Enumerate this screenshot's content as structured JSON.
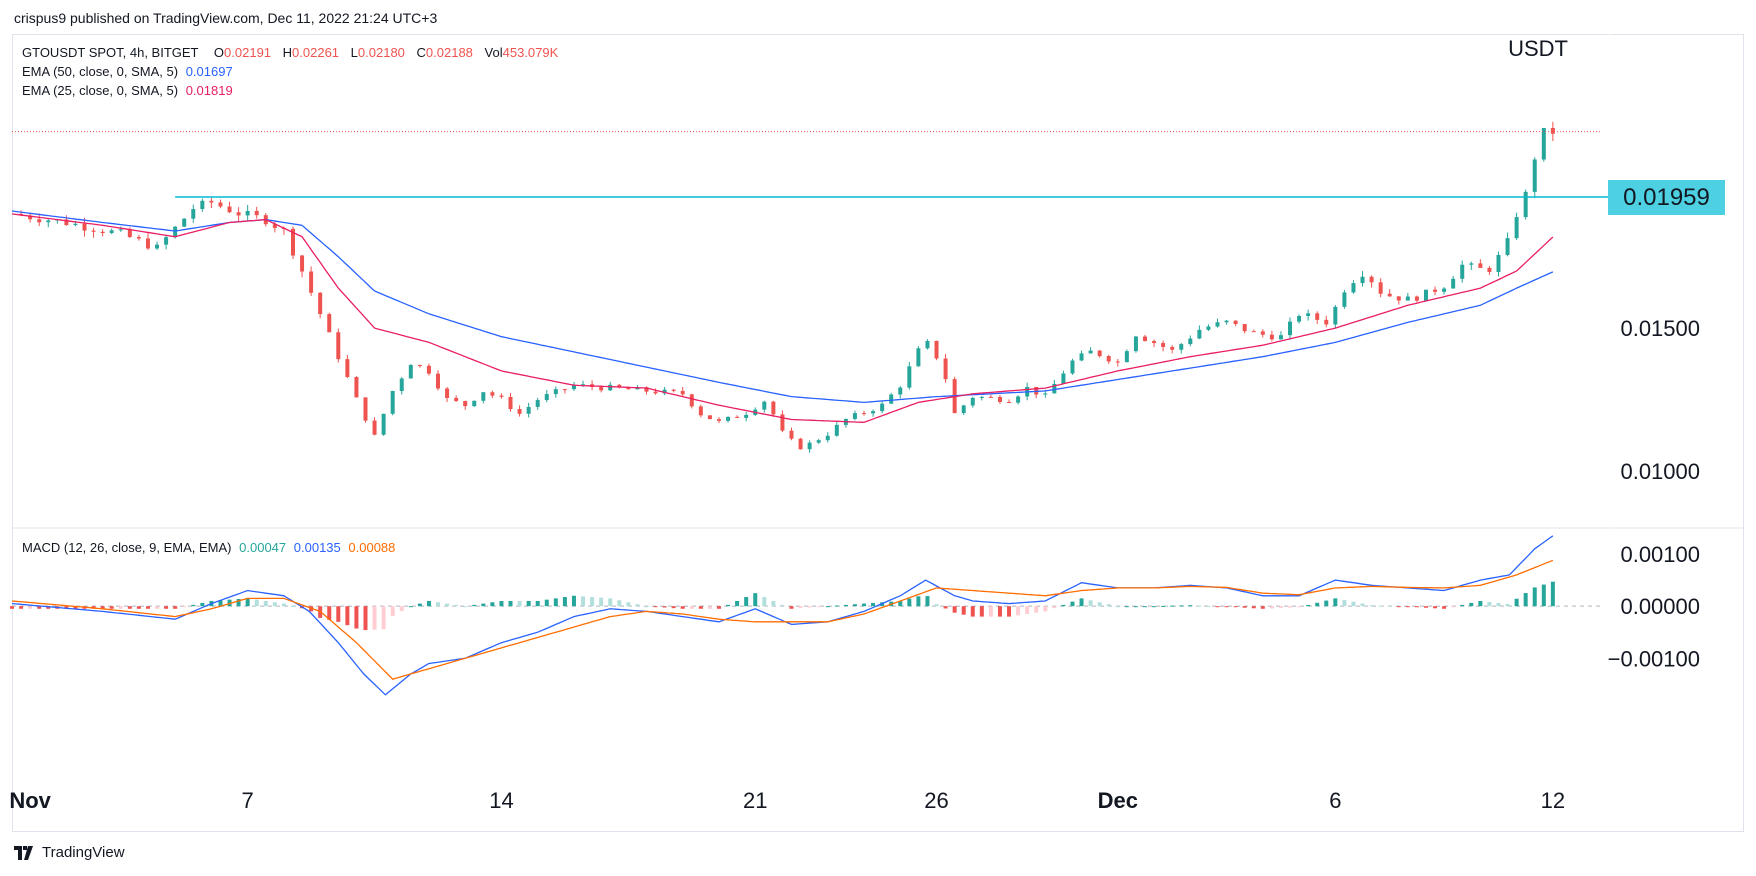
{
  "publisher": "crispus9 published on TradingView.com, Dec 11, 2022 21:24 UTC+3",
  "footer": {
    "brand": "TradingView"
  },
  "legend": {
    "symbol": "GTOUSDT SPOT, 4h, BITGET",
    "o_label": "O",
    "o_value": "0.02191",
    "h_label": "H",
    "h_value": "0.02261",
    "l_label": "L",
    "l_value": "0.02180",
    "c_label": "C",
    "c_value": "0.02188",
    "vol_label": "Vol",
    "vol_value": "453.079K",
    "ema50_label": "EMA (50, close, 0, SMA, 5)",
    "ema50_value": "0.01697",
    "ema25_label": "EMA (25, close, 0, SMA, 5)",
    "ema25_value": "0.01819",
    "macd_label": "MACD (12, 26, close, 9, EMA, EMA)",
    "macd_hist": "0.00047",
    "macd_line": "0.00135",
    "macd_signal": "0.00088"
  },
  "colors": {
    "up": "#26a69a",
    "down": "#ef5350",
    "ema50": "#2962ff",
    "ema25": "#e91e63",
    "macd_line": "#2962ff",
    "signal_line": "#ff6d00",
    "hline": "#00bcd4",
    "hist_up_strong": "#26a69a",
    "hist_up_weak": "#b2dfdb",
    "hist_down_strong": "#ef5350",
    "hist_down_weak": "#ffcdd2"
  },
  "chart_data": [
    {
      "type": "candlestick",
      "title": "GTOUSDT SPOT, 4h, BITGET",
      "currency_label": "USDT",
      "price_ticks": [
        "0.01000",
        "0.01500"
      ],
      "hline_value": 0.01959,
      "hline_label": "0.01959",
      "last_price": 0.02188,
      "ylim": [
        0.008,
        0.0253
      ],
      "x_ticks": [
        {
          "label": "Nov",
          "day": 1,
          "bold": true
        },
        {
          "label": "7",
          "day": 7
        },
        {
          "label": "14",
          "day": 14
        },
        {
          "label": "21",
          "day": 21
        },
        {
          "label": "26",
          "day": 26
        },
        {
          "label": "Dec",
          "day": 31,
          "bold": true
        },
        {
          "label": "6",
          "day": 37
        },
        {
          "label": "12",
          "day": 43
        }
      ],
      "xlim_days": [
        0.5,
        44.3
      ],
      "close_path": [
        {
          "day": 0.5,
          "close": 0.019
        },
        {
          "day": 2,
          "close": 0.0187
        },
        {
          "day": 3.5,
          "close": 0.0183
        },
        {
          "day": 4.5,
          "close": 0.0178
        },
        {
          "day": 5,
          "close": 0.0185
        },
        {
          "day": 5.5,
          "close": 0.0192
        },
        {
          "day": 6,
          "close": 0.0194
        },
        {
          "day": 6.8,
          "close": 0.019
        },
        {
          "day": 7.5,
          "close": 0.0188
        },
        {
          "day": 8,
          "close": 0.0184
        },
        {
          "day": 8.5,
          "close": 0.017
        },
        {
          "day": 9,
          "close": 0.0155
        },
        {
          "day": 9.5,
          "close": 0.014
        },
        {
          "day": 10,
          "close": 0.0125
        },
        {
          "day": 10.5,
          "close": 0.0112
        },
        {
          "day": 11,
          "close": 0.0128
        },
        {
          "day": 11.5,
          "close": 0.0138
        },
        {
          "day": 12,
          "close": 0.0135
        },
        {
          "day": 12.5,
          "close": 0.0125
        },
        {
          "day": 13,
          "close": 0.0123
        },
        {
          "day": 13.5,
          "close": 0.0128
        },
        {
          "day": 14,
          "close": 0.0125
        },
        {
          "day": 14.5,
          "close": 0.012
        },
        {
          "day": 15,
          "close": 0.0125
        },
        {
          "day": 16,
          "close": 0.013
        },
        {
          "day": 17,
          "close": 0.0129
        },
        {
          "day": 18,
          "close": 0.0128
        },
        {
          "day": 19,
          "close": 0.0127
        },
        {
          "day": 19.5,
          "close": 0.012
        },
        {
          "day": 20,
          "close": 0.0117
        },
        {
          "day": 20.7,
          "close": 0.012
        },
        {
          "day": 21.3,
          "close": 0.0125
        },
        {
          "day": 21.8,
          "close": 0.0112
        },
        {
          "day": 22.3,
          "close": 0.0108
        },
        {
          "day": 23,
          "close": 0.0113
        },
        {
          "day": 23.5,
          "close": 0.0118
        },
        {
          "day": 24.5,
          "close": 0.0123
        },
        {
          "day": 25,
          "close": 0.013
        },
        {
          "day": 25.5,
          "close": 0.0142
        },
        {
          "day": 25.8,
          "close": 0.0145
        },
        {
          "day": 26.2,
          "close": 0.0135
        },
        {
          "day": 26.5,
          "close": 0.012
        },
        {
          "day": 27,
          "close": 0.0126
        },
        {
          "day": 28,
          "close": 0.0125
        },
        {
          "day": 28.5,
          "close": 0.0129
        },
        {
          "day": 29,
          "close": 0.0126
        },
        {
          "day": 29.7,
          "close": 0.0138
        },
        {
          "day": 30.3,
          "close": 0.0142
        },
        {
          "day": 31,
          "close": 0.0138
        },
        {
          "day": 31.5,
          "close": 0.0148
        },
        {
          "day": 32.5,
          "close": 0.0142
        },
        {
          "day": 33.3,
          "close": 0.015
        },
        {
          "day": 34,
          "close": 0.0152
        },
        {
          "day": 34.8,
          "close": 0.0148
        },
        {
          "day": 35.5,
          "close": 0.0147
        },
        {
          "day": 36,
          "close": 0.0155
        },
        {
          "day": 36.8,
          "close": 0.0152
        },
        {
          "day": 37.3,
          "close": 0.0165
        },
        {
          "day": 37.8,
          "close": 0.017
        },
        {
          "day": 38.3,
          "close": 0.0162
        },
        {
          "day": 39,
          "close": 0.016
        },
        {
          "day": 39.5,
          "close": 0.0162
        },
        {
          "day": 40,
          "close": 0.0165
        },
        {
          "day": 40.5,
          "close": 0.0172
        },
        {
          "day": 41.2,
          "close": 0.017
        },
        {
          "day": 41.7,
          "close": 0.0178
        },
        {
          "day": 42,
          "close": 0.019
        },
        {
          "day": 42.3,
          "close": 0.0198
        },
        {
          "day": 42.6,
          "close": 0.0216
        },
        {
          "day": 42.8,
          "close": 0.02191
        },
        {
          "day": 43,
          "close": 0.02188
        }
      ],
      "ema50_path": [
        {
          "day": 0.5,
          "v": 0.0191
        },
        {
          "day": 3,
          "v": 0.0187
        },
        {
          "day": 5,
          "v": 0.0184
        },
        {
          "day": 6.5,
          "v": 0.0187
        },
        {
          "day": 7.5,
          "v": 0.0188
        },
        {
          "day": 8.5,
          "v": 0.0186
        },
        {
          "day": 9.5,
          "v": 0.0175
        },
        {
          "day": 10.5,
          "v": 0.0163
        },
        {
          "day": 12,
          "v": 0.0155
        },
        {
          "day": 14,
          "v": 0.0147
        },
        {
          "day": 17,
          "v": 0.0139
        },
        {
          "day": 20,
          "v": 0.0131
        },
        {
          "day": 22,
          "v": 0.0126
        },
        {
          "day": 24,
          "v": 0.0124
        },
        {
          "day": 26,
          "v": 0.0126
        },
        {
          "day": 29,
          "v": 0.0128
        },
        {
          "day": 31,
          "v": 0.0132
        },
        {
          "day": 33,
          "v": 0.0136
        },
        {
          "day": 35,
          "v": 0.014
        },
        {
          "day": 37,
          "v": 0.0145
        },
        {
          "day": 39,
          "v": 0.0152
        },
        {
          "day": 41,
          "v": 0.0158
        },
        {
          "day": 42,
          "v": 0.0164
        },
        {
          "day": 43,
          "v": 0.01697
        }
      ],
      "ema25_path": [
        {
          "day": 0.5,
          "v": 0.019
        },
        {
          "day": 3,
          "v": 0.0186
        },
        {
          "day": 5,
          "v": 0.0182
        },
        {
          "day": 6.5,
          "v": 0.0187
        },
        {
          "day": 7.5,
          "v": 0.0188
        },
        {
          "day": 8.5,
          "v": 0.0182
        },
        {
          "day": 9.5,
          "v": 0.0164
        },
        {
          "day": 10.5,
          "v": 0.015
        },
        {
          "day": 12,
          "v": 0.0145
        },
        {
          "day": 14,
          "v": 0.0135
        },
        {
          "day": 16,
          "v": 0.013
        },
        {
          "day": 18,
          "v": 0.0129
        },
        {
          "day": 20,
          "v": 0.0123
        },
        {
          "day": 22,
          "v": 0.0118
        },
        {
          "day": 24,
          "v": 0.0117
        },
        {
          "day": 25.5,
          "v": 0.0124
        },
        {
          "day": 27,
          "v": 0.0127
        },
        {
          "day": 29,
          "v": 0.0129
        },
        {
          "day": 31,
          "v": 0.0135
        },
        {
          "day": 33,
          "v": 0.014
        },
        {
          "day": 35,
          "v": 0.0144
        },
        {
          "day": 37,
          "v": 0.015
        },
        {
          "day": 39,
          "v": 0.0158
        },
        {
          "day": 41,
          "v": 0.0164
        },
        {
          "day": 42,
          "v": 0.017
        },
        {
          "day": 43,
          "v": 0.01819
        }
      ]
    },
    {
      "type": "line",
      "title": "MACD (12, 26, close, 9, EMA, EMA)",
      "y_ticks": [
        "0.00100",
        "0.00000",
        "−0.00100"
      ],
      "ylim": [
        -0.0018,
        0.0015
      ],
      "macd_path": [
        {
          "day": 0.5,
          "v": 5e-05
        },
        {
          "day": 3,
          "v": -0.0001
        },
        {
          "day": 5,
          "v": -0.00025
        },
        {
          "day": 6,
          "v": 5e-05
        },
        {
          "day": 7,
          "v": 0.0003
        },
        {
          "day": 8,
          "v": 0.0002
        },
        {
          "day": 8.7,
          "v": -0.0001
        },
        {
          "day": 9.5,
          "v": -0.0007
        },
        {
          "day": 10.2,
          "v": -0.0013
        },
        {
          "day": 10.8,
          "v": -0.0017
        },
        {
          "day": 11.5,
          "v": -0.0013
        },
        {
          "day": 12,
          "v": -0.0011
        },
        {
          "day": 13,
          "v": -0.001
        },
        {
          "day": 14,
          "v": -0.0007
        },
        {
          "day": 15,
          "v": -0.0005
        },
        {
          "day": 16,
          "v": -0.0002
        },
        {
          "day": 17,
          "v": -5e-05
        },
        {
          "day": 18,
          "v": -0.0001
        },
        {
          "day": 19,
          "v": -0.0002
        },
        {
          "day": 20,
          "v": -0.0003
        },
        {
          "day": 21,
          "v": -5e-05
        },
        {
          "day": 22,
          "v": -0.00035
        },
        {
          "day": 23,
          "v": -0.0003
        },
        {
          "day": 24,
          "v": -0.0001
        },
        {
          "day": 25,
          "v": 0.0002
        },
        {
          "day": 25.7,
          "v": 0.0005
        },
        {
          "day": 26.5,
          "v": 0.0002
        },
        {
          "day": 27,
          "v": 0.0001
        },
        {
          "day": 28,
          "v": 5e-05
        },
        {
          "day": 29,
          "v": 0.0001
        },
        {
          "day": 30,
          "v": 0.00045
        },
        {
          "day": 31,
          "v": 0.00035
        },
        {
          "day": 32,
          "v": 0.00035
        },
        {
          "day": 33,
          "v": 0.0004
        },
        {
          "day": 34,
          "v": 0.00035
        },
        {
          "day": 35,
          "v": 0.0002
        },
        {
          "day": 36,
          "v": 0.0002
        },
        {
          "day": 37,
          "v": 0.0005
        },
        {
          "day": 38,
          "v": 0.0004
        },
        {
          "day": 39,
          "v": 0.00035
        },
        {
          "day": 40,
          "v": 0.0003
        },
        {
          "day": 41,
          "v": 0.0005
        },
        {
          "day": 41.8,
          "v": 0.0006
        },
        {
          "day": 42.5,
          "v": 0.0011
        },
        {
          "day": 43,
          "v": 0.00135
        }
      ],
      "signal_path": [
        {
          "day": 0.5,
          "v": 0.0001
        },
        {
          "day": 3,
          "v": -5e-05
        },
        {
          "day": 5,
          "v": -0.0002
        },
        {
          "day": 6,
          "v": -5e-05
        },
        {
          "day": 7,
          "v": 0.00015
        },
        {
          "day": 8,
          "v": 0.00015
        },
        {
          "day": 9,
          "v": -0.0001
        },
        {
          "day": 10,
          "v": -0.0007
        },
        {
          "day": 11,
          "v": -0.0014
        },
        {
          "day": 12,
          "v": -0.0012
        },
        {
          "day": 13,
          "v": -0.001
        },
        {
          "day": 14,
          "v": -0.0008
        },
        {
          "day": 15,
          "v": -0.0006
        },
        {
          "day": 16,
          "v": -0.0004
        },
        {
          "day": 17,
          "v": -0.0002
        },
        {
          "day": 18,
          "v": -0.0001
        },
        {
          "day": 19,
          "v": -0.00015
        },
        {
          "day": 20,
          "v": -0.00025
        },
        {
          "day": 21,
          "v": -0.0003
        },
        {
          "day": 22,
          "v": -0.0003
        },
        {
          "day": 23,
          "v": -0.0003
        },
        {
          "day": 24,
          "v": -0.00015
        },
        {
          "day": 25,
          "v": 0.0001
        },
        {
          "day": 26,
          "v": 0.00035
        },
        {
          "day": 27,
          "v": 0.0003
        },
        {
          "day": 28,
          "v": 0.00025
        },
        {
          "day": 29,
          "v": 0.0002
        },
        {
          "day": 30,
          "v": 0.0003
        },
        {
          "day": 31,
          "v": 0.00035
        },
        {
          "day": 32,
          "v": 0.00035
        },
        {
          "day": 33,
          "v": 0.00038
        },
        {
          "day": 34,
          "v": 0.00036
        },
        {
          "day": 35,
          "v": 0.00025
        },
        {
          "day": 36,
          "v": 0.00022
        },
        {
          "day": 37,
          "v": 0.00035
        },
        {
          "day": 38,
          "v": 0.00038
        },
        {
          "day": 39,
          "v": 0.00036
        },
        {
          "day": 40,
          "v": 0.00035
        },
        {
          "day": 41,
          "v": 0.0004
        },
        {
          "day": 42,
          "v": 0.0006
        },
        {
          "day": 43,
          "v": 0.00088
        }
      ]
    }
  ]
}
